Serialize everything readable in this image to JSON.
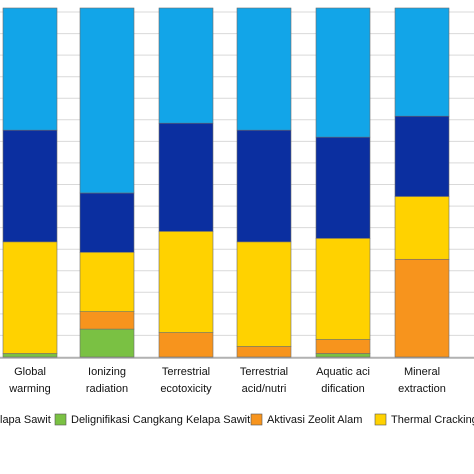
{
  "chart_data": {
    "type": "bar",
    "stacked": true,
    "normalized": true,
    "categories": [
      [
        "Global",
        "warming"
      ],
      [
        "Ionizing",
        "radiation"
      ],
      [
        "Terrestrial",
        "ecotoxicity"
      ],
      [
        "Terrestrial",
        "acid/nutri"
      ],
      [
        "Aquatic aci",
        "dification"
      ],
      [
        "Mineral",
        "extraction"
      ]
    ],
    "series": [
      {
        "name": "Delignifikasi Cangkang Kelapa Sawit",
        "color": "#7ac143",
        "values": [
          1,
          8,
          0,
          0,
          1,
          0
        ]
      },
      {
        "name": "Aktivasi Zeolit Alam",
        "color": "#f7941d",
        "values": [
          0,
          5,
          7,
          3,
          4,
          28
        ]
      },
      {
        "name": "Thermal Cracking",
        "color": "#ffd200",
        "values": [
          32,
          17,
          29,
          30,
          29,
          18
        ]
      },
      {
        "name": "",
        "color": "#0b2fa0",
        "values": [
          32,
          17,
          31,
          32,
          29,
          23
        ]
      },
      {
        "name": "",
        "color": "#12a5e8",
        "values": [
          35,
          53,
          33,
          35,
          37,
          31
        ]
      }
    ],
    "legend": {
      "placement": "bottom",
      "items": [
        {
          "label": "lapa Sawit",
          "color": "#0b2fa0"
        },
        {
          "label": "Delignifikasi Cangkang Kelapa Sawit",
          "color": "#7ac143"
        },
        {
          "label": "Aktivasi Zeolit Alam",
          "color": "#f7941d"
        },
        {
          "label": "Thermal Cracking",
          "color": "#ffd200"
        }
      ]
    },
    "grid": true
  }
}
